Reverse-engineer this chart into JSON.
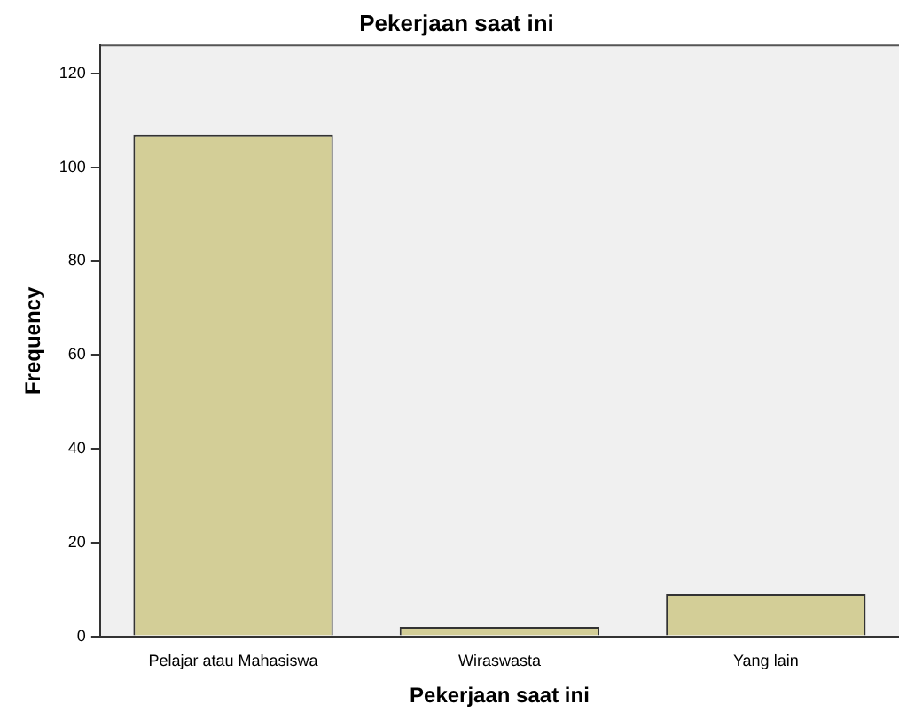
{
  "chart_data": {
    "type": "bar",
    "title": "Pekerjaan saat ini",
    "xlabel": "Pekerjaan saat ini",
    "ylabel": "Frequency",
    "categories": [
      "Pelajar atau Mahasiswa",
      "Wiraswasta",
      "Yang lain"
    ],
    "values": [
      107,
      2,
      9
    ],
    "color": "#d3ce97",
    "ylim": [
      0,
      126
    ],
    "yticks": [
      0,
      20,
      40,
      60,
      80,
      100,
      120
    ],
    "grid": false,
    "legend": false
  }
}
